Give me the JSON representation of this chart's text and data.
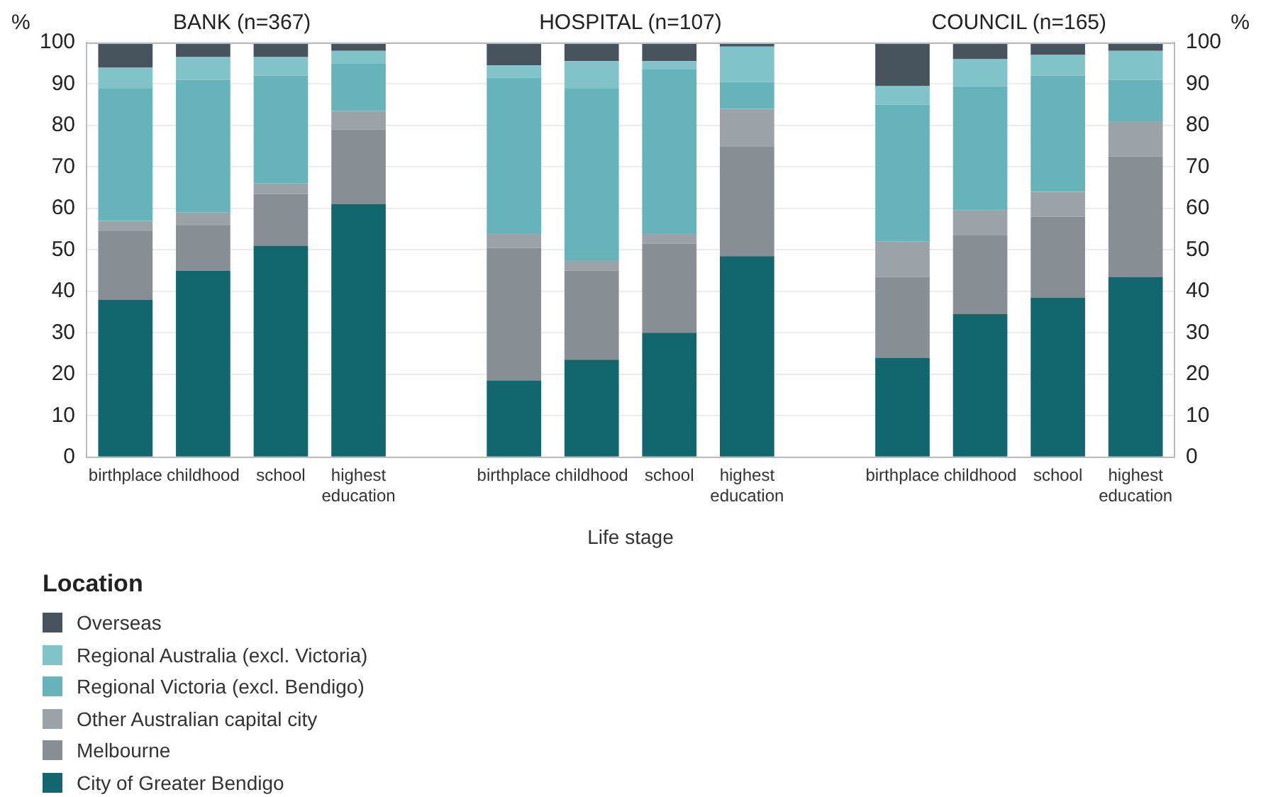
{
  "chart_data": {
    "type": "bar",
    "stacked": true,
    "categories": [
      "birthplace",
      "childhood",
      "school",
      "highest education",
      null,
      "birthplace",
      "childhood",
      "school",
      "highest education",
      null,
      "birthplace",
      "childhood",
      "school",
      "highest education"
    ],
    "series": [
      {
        "name": "City of Greater Bendigo",
        "color": "#12666e",
        "values": [
          38,
          45,
          51,
          61,
          null,
          18.5,
          23.5,
          30,
          48.5,
          null,
          24,
          34.5,
          38.5,
          43.5
        ]
      },
      {
        "name": "Melbourne",
        "color": "#878e94",
        "values": [
          16.5,
          11,
          12.5,
          18,
          null,
          32,
          21.5,
          21.5,
          26.5,
          null,
          19.5,
          19,
          19.5,
          29
        ]
      },
      {
        "name": "Other Australian capital city",
        "color": "#9ba3a8",
        "values": [
          2.5,
          3,
          2.5,
          4.5,
          null,
          3.5,
          2.5,
          2.5,
          9,
          null,
          8.5,
          6,
          6,
          8.5
        ]
      },
      {
        "name": "Regional Victoria (excl. Bendigo)",
        "color": "#66b3b9",
        "values": [
          32,
          32,
          26,
          11.5,
          null,
          37.5,
          41.5,
          39.5,
          6.5,
          null,
          33,
          30,
          28,
          10
        ]
      },
      {
        "name": "Regional Australia (excl. Victoria)",
        "color": "#80c3c8",
        "values": [
          5,
          5.5,
          4.5,
          3,
          null,
          3,
          6.5,
          2,
          8.5,
          null,
          4.5,
          6.5,
          5,
          7
        ]
      },
      {
        "name": "Overseas",
        "color": "#47545d",
        "values": [
          6,
          3.5,
          3.5,
          2,
          null,
          5.5,
          4.5,
          4.5,
          1,
          null,
          10.5,
          4,
          3,
          2
        ]
      }
    ],
    "xlabel": "Life stage",
    "ylabel": "%",
    "y2label": "%",
    "ylim": [
      0,
      100
    ],
    "yticks": [
      0,
      10,
      20,
      30,
      40,
      50,
      60,
      70,
      80,
      90,
      100
    ],
    "y2lim": [
      0,
      100
    ],
    "y2ticks": [
      0,
      10,
      20,
      30,
      40,
      50,
      60,
      70,
      80,
      90,
      100
    ],
    "grid": "y",
    "legend": "bottom left",
    "legend_title": "Location",
    "annotations": [
      "BANK (n=367)",
      "HOSPITAL (n=107)",
      "COUNCIL (n=165)"
    ]
  }
}
